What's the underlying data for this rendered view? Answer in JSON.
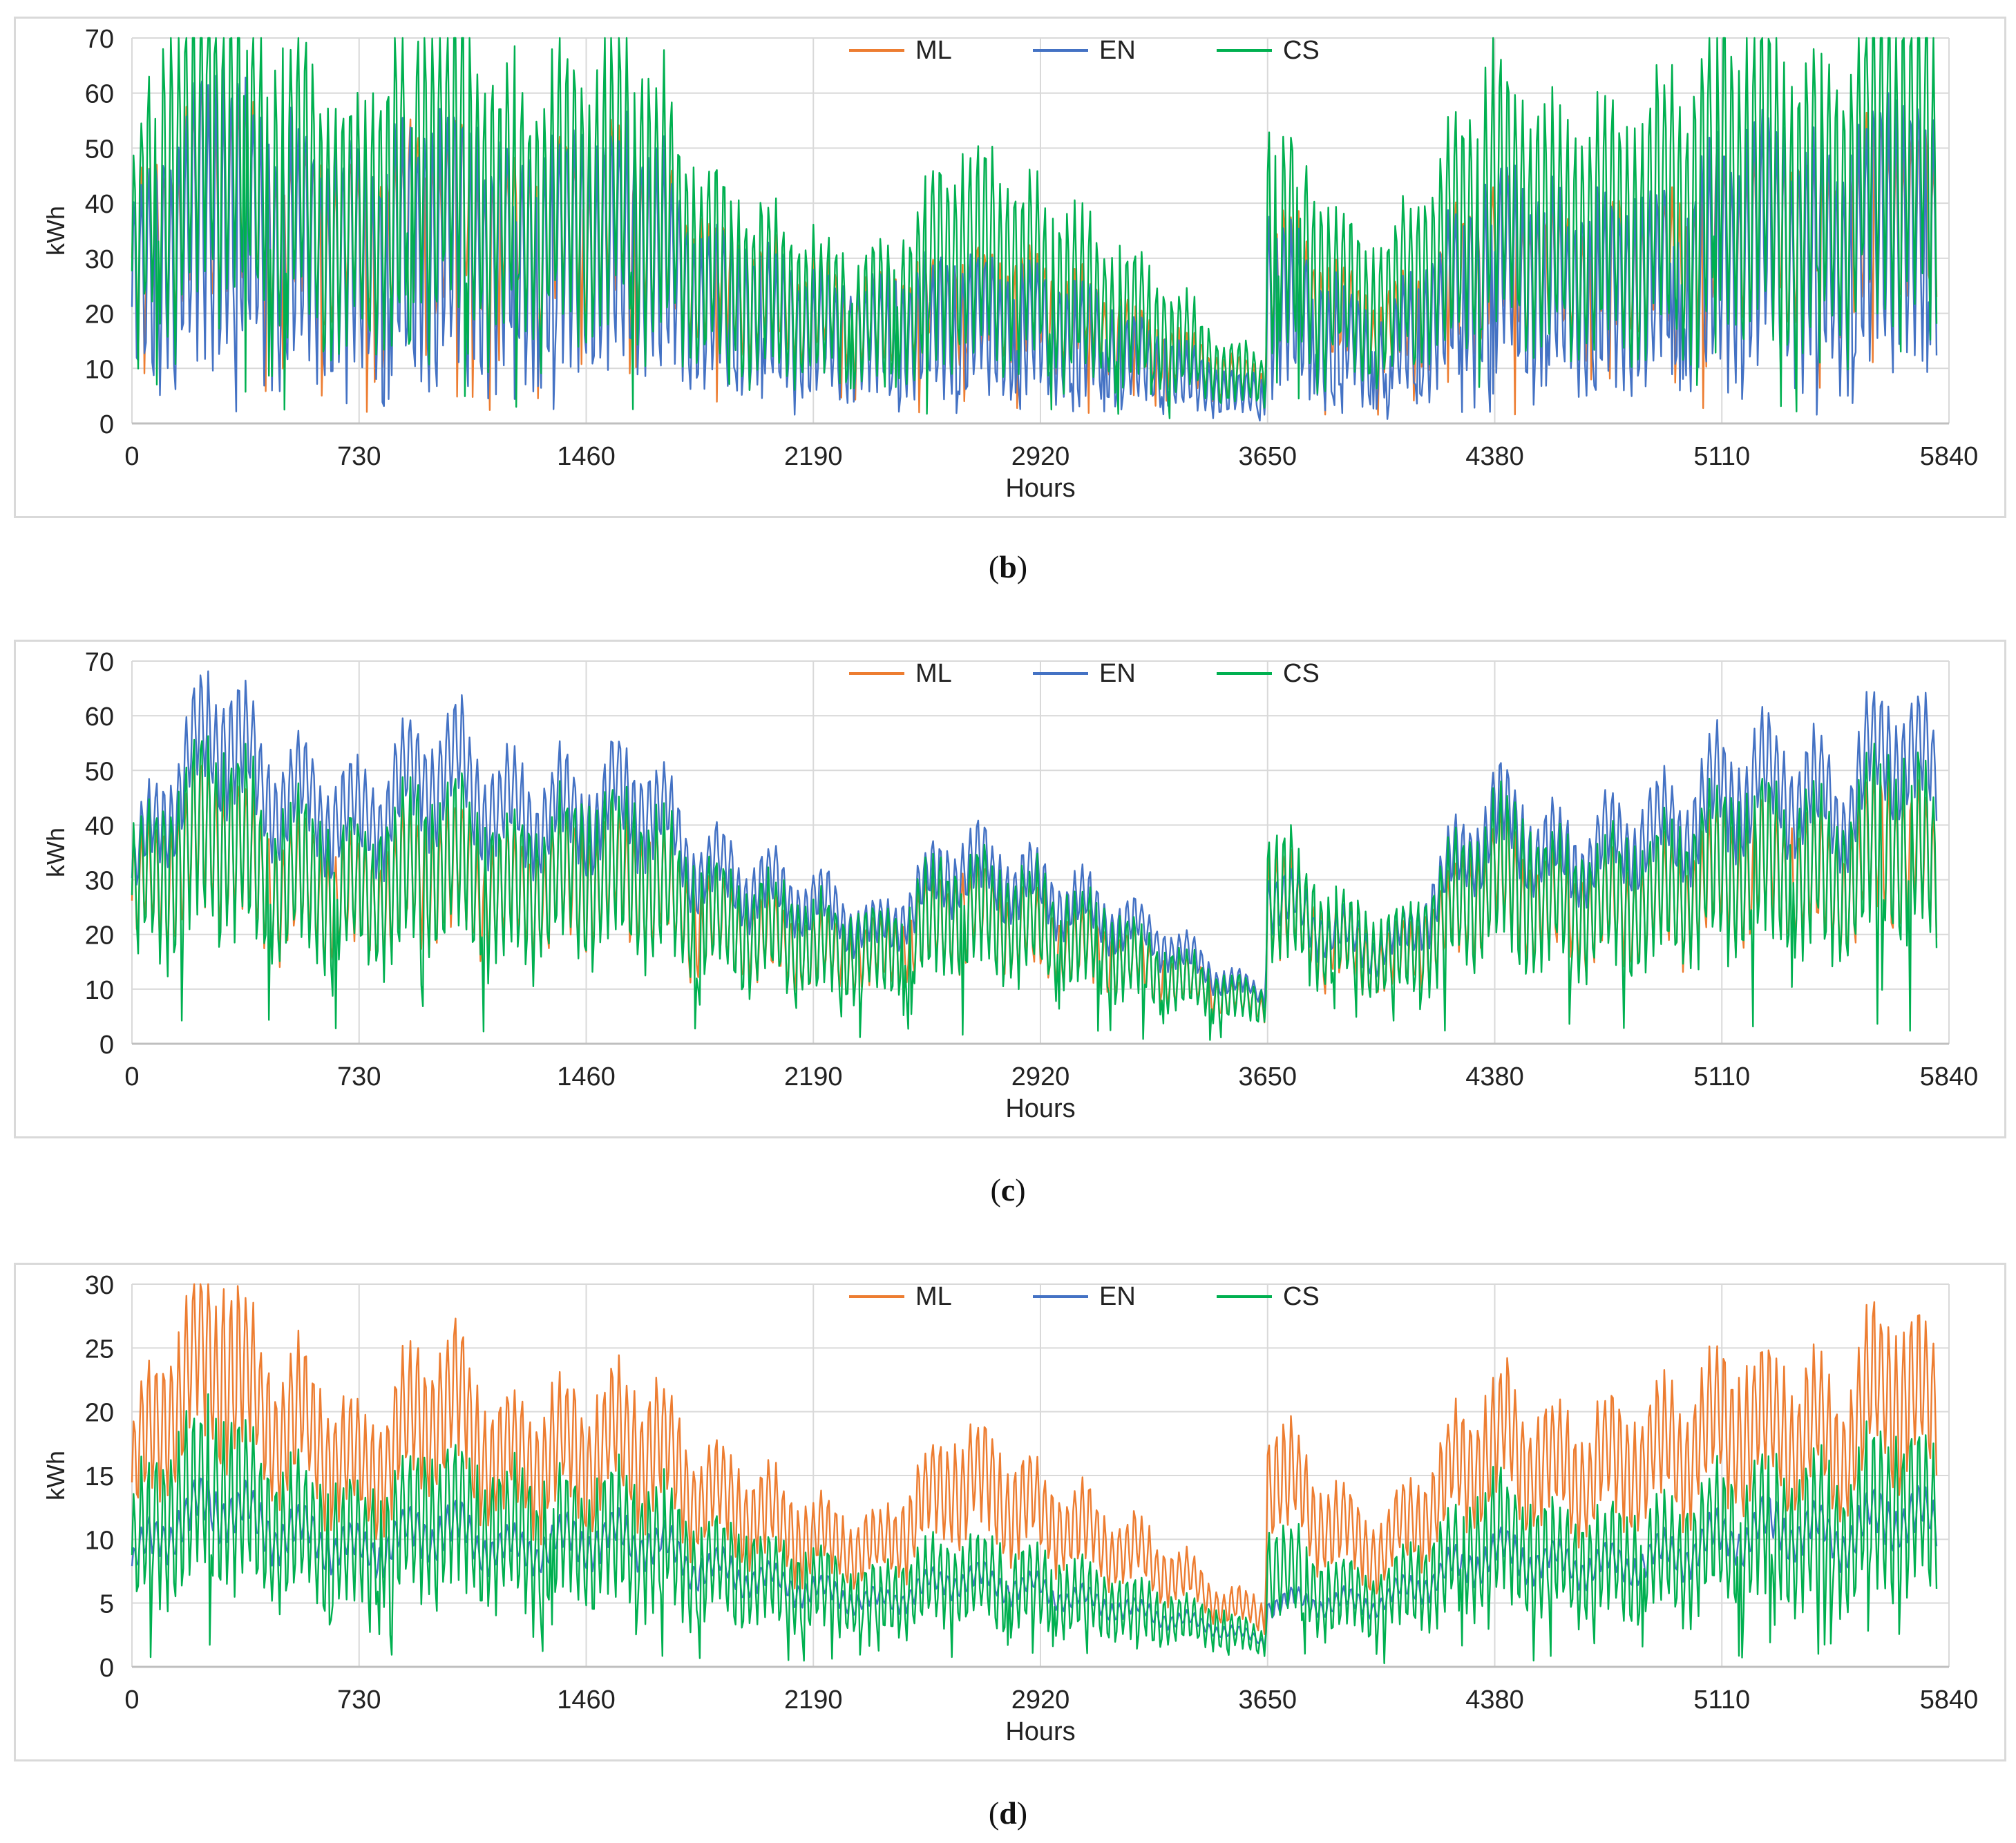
{
  "colors": {
    "ML": "#ED7D31",
    "EN": "#4472C4",
    "CS": "#00B050",
    "grid": "#d9d9d9",
    "axis": "#bfbfbf"
  },
  "chart_data": [
    {
      "panel": "b",
      "caption_open": "(",
      "caption_letter": "b",
      "caption_close": ")",
      "type": "line",
      "xlabel": "Hours",
      "ylabel": "kWh",
      "xlim": [
        0,
        5840
      ],
      "ylim": [
        0,
        70
      ],
      "x_ticks": [
        "0",
        "730",
        "1460",
        "2190",
        "2920",
        "3650",
        "4380",
        "5110",
        "5840"
      ],
      "y_ticks": [
        "0",
        "10",
        "20",
        "30",
        "40",
        "50",
        "60",
        "70"
      ],
      "legend": [
        "ML",
        "EN",
        "CS"
      ],
      "series": [
        {
          "name": "ML",
          "envelope_x": [
            0,
            120,
            300,
            400,
            600,
            730,
            1000,
            1200,
            1460,
            1650,
            1800,
            2000,
            2190,
            2400,
            2650,
            2920,
            3100,
            3300,
            3500,
            3640,
            3650,
            3800,
            4000,
            4100,
            4380,
            4600,
            4800,
            5000,
            5110,
            5300,
            5500,
            5650,
            5800
          ],
          "envelope_y": [
            28,
            36,
            45,
            37,
            34,
            32,
            38,
            33,
            36,
            36,
            27,
            23,
            20,
            18,
            22,
            21,
            18,
            13,
            9,
            7,
            30,
            22,
            16,
            18,
            32,
            26,
            28,
            29,
            34,
            36,
            32,
            40,
            33
          ],
          "amplitude": 0.45
        },
        {
          "name": "EN",
          "envelope_x": [
            0,
            120,
            300,
            400,
            600,
            730,
            1000,
            1200,
            1460,
            1650,
            1800,
            2000,
            2190,
            2400,
            2650,
            2920,
            3100,
            3300,
            3500,
            3640,
            3650,
            3800,
            4000,
            4100,
            4380,
            4600,
            4800,
            5000,
            5110,
            5300,
            5500,
            5650,
            5800
          ],
          "envelope_y": [
            24,
            32,
            40,
            33,
            30,
            28,
            34,
            29,
            31,
            31,
            22,
            19,
            16,
            15,
            18,
            17,
            14,
            10,
            6,
            5,
            24,
            17,
            12,
            15,
            28,
            23,
            24,
            26,
            30,
            32,
            28,
            37,
            30
          ],
          "amplitude": 0.75
        },
        {
          "name": "CS",
          "envelope_x": [
            0,
            120,
            300,
            400,
            600,
            730,
            1000,
            1200,
            1460,
            1650,
            1800,
            2000,
            2190,
            2400,
            2650,
            2920,
            3100,
            3300,
            3500,
            3640,
            3650,
            3800,
            4000,
            4100,
            4380,
            4600,
            4800,
            5000,
            5110,
            5300,
            5500,
            5650,
            5800
          ],
          "envelope_y": [
            30,
            48,
            58,
            45,
            40,
            36,
            52,
            38,
            42,
            44,
            30,
            25,
            21,
            19,
            32,
            26,
            22,
            17,
            10,
            8,
            38,
            28,
            20,
            25,
            42,
            34,
            36,
            40,
            46,
            44,
            40,
            56,
            45
          ],
          "amplitude": 0.65
        }
      ]
    },
    {
      "panel": "c",
      "caption_open": "(",
      "caption_letter": "c",
      "caption_close": ")",
      "type": "line",
      "xlabel": "Hours",
      "ylabel": "kWh",
      "xlim": [
        0,
        5840
      ],
      "ylim": [
        0,
        70
      ],
      "x_ticks": [
        "0",
        "730",
        "1460",
        "2190",
        "2920",
        "3650",
        "4380",
        "5110",
        "5840"
      ],
      "y_ticks": [
        "0",
        "10",
        "20",
        "30",
        "40",
        "50",
        "60",
        "70"
      ],
      "legend": [
        "ML",
        "EN",
        "CS"
      ],
      "series": [
        {
          "name": "ML",
          "envelope_x": [
            0,
            120,
            300,
            400,
            600,
            730,
            1000,
            1200,
            1460,
            1650,
            1800,
            2000,
            2190,
            2400,
            2650,
            2920,
            3100,
            3300,
            3500,
            3640,
            3650,
            3800,
            4000,
            4100,
            4380,
            4600,
            4800,
            5000,
            5110,
            5300,
            5500,
            5650,
            5800
          ],
          "envelope_y": [
            26,
            32,
            40,
            30,
            28,
            26,
            32,
            27,
            30,
            30,
            23,
            20,
            17,
            16,
            24,
            20,
            17,
            13,
            9,
            7,
            28,
            20,
            15,
            16,
            30,
            24,
            25,
            27,
            31,
            32,
            28,
            38,
            30
          ],
          "amplitude": 0.4
        },
        {
          "name": "EN",
          "envelope_x": [
            0,
            120,
            300,
            400,
            600,
            730,
            1000,
            1200,
            1460,
            1650,
            1800,
            2000,
            2190,
            2400,
            2650,
            2920,
            3100,
            3300,
            3500,
            3640,
            3650,
            3800,
            4000,
            4100,
            4380,
            4600,
            4800,
            5000,
            5110,
            5300,
            5500,
            5650,
            5800
          ],
          "envelope_y": [
            30,
            45,
            60,
            47,
            44,
            40,
            52,
            42,
            42,
            46,
            33,
            29,
            26,
            20,
            33,
            28,
            24,
            19,
            12,
            9,
            28,
            22,
            17,
            20,
            42,
            33,
            37,
            40,
            46,
            48,
            42,
            56,
            48
          ],
          "amplitude": 0.2
        },
        {
          "name": "CS",
          "envelope_x": [
            0,
            120,
            300,
            400,
            600,
            730,
            1000,
            1200,
            1460,
            1650,
            1800,
            2000,
            2190,
            2400,
            2650,
            2920,
            3100,
            3300,
            3500,
            3640,
            3650,
            3800,
            4000,
            4100,
            4380,
            4600,
            4800,
            5000,
            5110,
            5300,
            5500,
            5650,
            5800
          ],
          "envelope_y": [
            26,
            33,
            41,
            31,
            29,
            27,
            34,
            28,
            31,
            31,
            24,
            21,
            18,
            16,
            25,
            21,
            18,
            13,
            9,
            7,
            29,
            21,
            16,
            17,
            31,
            25,
            26,
            28,
            32,
            33,
            29,
            39,
            31
          ],
          "amplitude": 0.5
        }
      ]
    },
    {
      "panel": "d",
      "caption_open": "(",
      "caption_letter": "d",
      "caption_close": ")",
      "type": "line",
      "xlabel": "Hours",
      "ylabel": "kWh",
      "xlim": [
        0,
        5840
      ],
      "ylim": [
        0,
        30
      ],
      "x_ticks": [
        "0",
        "730",
        "1460",
        "2190",
        "2920",
        "3650",
        "4380",
        "5110",
        "5840"
      ],
      "y_ticks": [
        "0",
        "5",
        "10",
        "15",
        "20",
        "25",
        "30"
      ],
      "legend": [
        "ML",
        "EN",
        "CS"
      ],
      "series": [
        {
          "name": "ML",
          "envelope_x": [
            0,
            120,
            300,
            400,
            600,
            730,
            1000,
            1200,
            1460,
            1650,
            1800,
            2000,
            2190,
            2400,
            2650,
            2920,
            3100,
            3300,
            3500,
            3640,
            3650,
            3800,
            4000,
            4100,
            4380,
            4600,
            4800,
            5000,
            5110,
            5300,
            5500,
            5650,
            5800
          ],
          "envelope_y": [
            15,
            21,
            25,
            20,
            18,
            15,
            21,
            16,
            17,
            18,
            14,
            12,
            10,
            9,
            15,
            12,
            10,
            8,
            5,
            4,
            16,
            12,
            9,
            11,
            18,
            15,
            16,
            17,
            19,
            19,
            17,
            23,
            19
          ],
          "amplitude": 0.3
        },
        {
          "name": "EN",
          "envelope_x": [
            0,
            120,
            300,
            400,
            600,
            730,
            1000,
            1200,
            1460,
            1650,
            1800,
            2000,
            2190,
            2400,
            2650,
            2920,
            3100,
            3300,
            3500,
            3640,
            3650,
            3800,
            4000,
            4100,
            4380,
            4600,
            4800,
            5000,
            5110,
            5300,
            5500,
            5650,
            5800
          ],
          "envelope_y": [
            8,
            11,
            13,
            11,
            10,
            9,
            11,
            9,
            10,
            10,
            8,
            7,
            6,
            5,
            7,
            6,
            5,
            4,
            3,
            2,
            5,
            5,
            5,
            6,
            9,
            8,
            8,
            9,
            10,
            11,
            10,
            12,
            11
          ],
          "amplitude": 0.15
        },
        {
          "name": "CS",
          "envelope_x": [
            0,
            120,
            300,
            400,
            600,
            730,
            1000,
            1200,
            1460,
            1650,
            1800,
            2000,
            2190,
            2400,
            2650,
            2920,
            3100,
            3300,
            3500,
            3640,
            3650,
            3800,
            4000,
            4100,
            4380,
            4600,
            4800,
            5000,
            5110,
            5300,
            5500,
            5650,
            5800
          ],
          "envelope_y": [
            9,
            12,
            14,
            11,
            10,
            9,
            12,
            10,
            10,
            10,
            8,
            7,
            6,
            5,
            7,
            6,
            5,
            4,
            3,
            2,
            8,
            6,
            5,
            6,
            10,
            8,
            8,
            9,
            10,
            11,
            10,
            13,
            11
          ],
          "amplitude": 0.55
        }
      ]
    }
  ]
}
